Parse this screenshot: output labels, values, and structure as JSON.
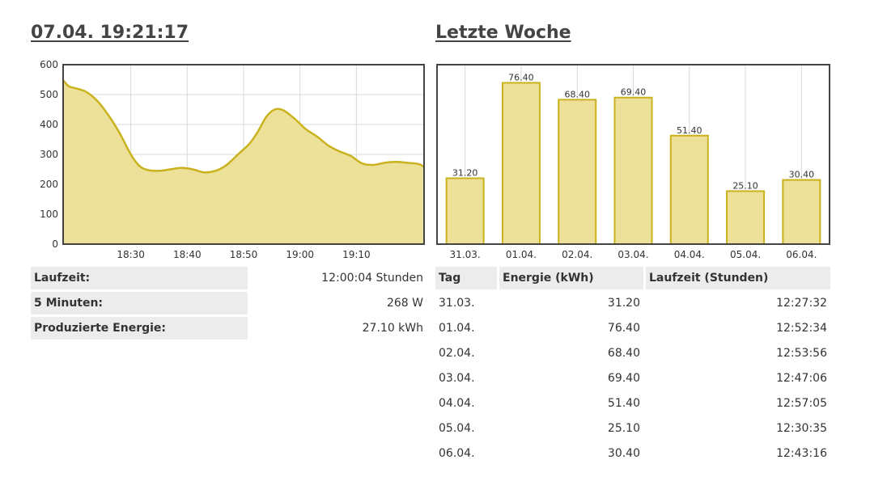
{
  "left": {
    "title": "07.04. 19:21:17",
    "info": [
      {
        "label": "Laufzeit:",
        "value": "12:00:04 Stunden"
      },
      {
        "label": "5 Minuten:",
        "value": "268 W"
      },
      {
        "label": "Produzierte Energie:",
        "value": "27.10 kWh"
      }
    ]
  },
  "right": {
    "title": "Letzte Woche",
    "table": {
      "headers": [
        "Tag",
        "Energie (kWh)",
        "Laufzeit (Stunden)"
      ],
      "rows": [
        [
          "31.03.",
          "31.20",
          "12:27:32"
        ],
        [
          "01.04.",
          "76.40",
          "12:52:34"
        ],
        [
          "02.04.",
          "68.40",
          "12:53:56"
        ],
        [
          "03.04.",
          "69.40",
          "12:47:06"
        ],
        [
          "04.04.",
          "51.40",
          "12:57:05"
        ],
        [
          "05.04.",
          "25.10",
          "12:30:35"
        ],
        [
          "06.04.",
          "30.40",
          "12:43:16"
        ]
      ]
    }
  },
  "colors": {
    "fill": "#ede19a",
    "line": "#c9b21e",
    "grid": "#d8d8d8",
    "border": "#444444"
  },
  "chart_data": [
    {
      "type": "area",
      "title": "",
      "x_tick_labels": [
        "18:30",
        "18:40",
        "18:50",
        "19:00",
        "19:10"
      ],
      "x_ticks_minutes": [
        30,
        40,
        50,
        60,
        70
      ],
      "xlim_minutes": [
        18,
        82
      ],
      "y_ticks": [
        0,
        100,
        200,
        300,
        400,
        500,
        600
      ],
      "ylim": [
        0,
        600
      ],
      "grid": true,
      "x": [
        18,
        19,
        20,
        22,
        24,
        26,
        28,
        30,
        31.5,
        33,
        35,
        37,
        39,
        41,
        43,
        45,
        47,
        49,
        51,
        52.5,
        54,
        55.5,
        57,
        59,
        61,
        63,
        65,
        67,
        69,
        71,
        73,
        75,
        77,
        79,
        81,
        82
      ],
      "y": [
        548,
        528,
        522,
        510,
        480,
        432,
        372,
        300,
        262,
        248,
        245,
        250,
        255,
        250,
        240,
        245,
        265,
        300,
        335,
        375,
        425,
        450,
        448,
        420,
        385,
        360,
        330,
        310,
        295,
        270,
        265,
        272,
        275,
        272,
        268,
        258
      ]
    },
    {
      "type": "bar",
      "title": "",
      "categories": [
        "31.03.",
        "01.04.",
        "02.04.",
        "03.04.",
        "04.04.",
        "05.04.",
        "06.04."
      ],
      "values": [
        31.2,
        76.4,
        68.4,
        69.4,
        51.4,
        25.1,
        30.4
      ],
      "value_labels": [
        "31.20",
        "76.40",
        "68.40",
        "69.40",
        "51.40",
        "25.10",
        "30.40"
      ],
      "ylim": [
        0,
        85
      ],
      "grid": true
    }
  ]
}
